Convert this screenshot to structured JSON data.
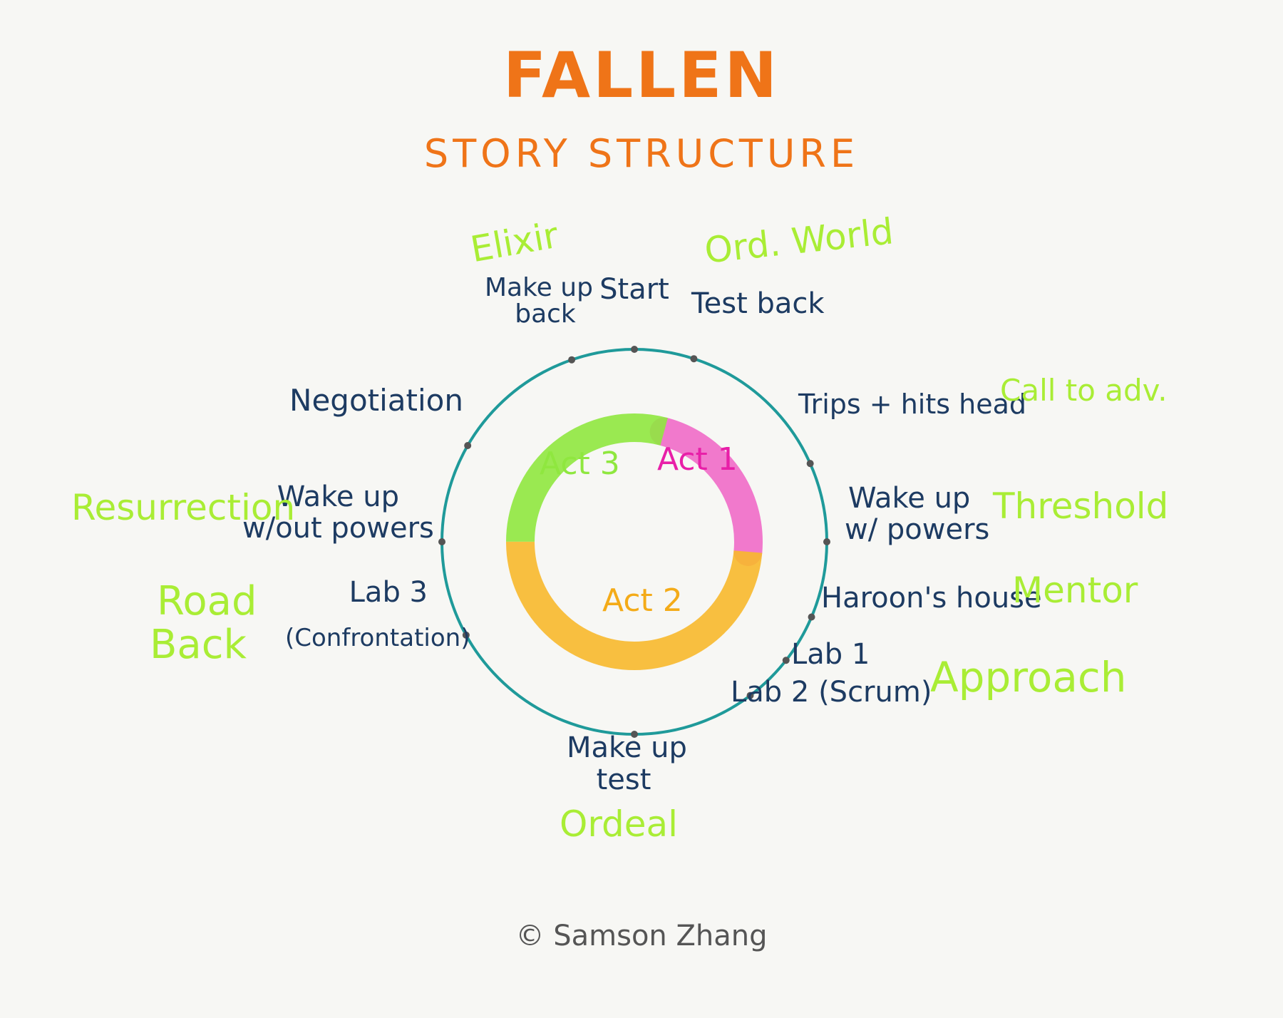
{
  "title": "FALLEN",
  "subtitle": "STORY STRUCTURE",
  "credit": "© Samson Zhang",
  "colors": {
    "title": "#ef7418",
    "event_text": "#1d3b62",
    "stage_text": "#a9ed35",
    "ring": "#1f9a9a",
    "act1": "#f06ac8",
    "act2": "#f7b82c",
    "act3": "#8fe73f",
    "dot": "#555555"
  },
  "acts": {
    "act1": "Act 1",
    "act2": "Act 2",
    "act3": "Act 3"
  },
  "events": {
    "start": "Start",
    "test_back": "Test back",
    "trips": "Trips + hits head",
    "wake_powers_1": "Wake up",
    "wake_powers_2": "w/ powers",
    "haroon": "Haroon's house",
    "lab1": "Lab 1",
    "lab2": "Lab 2 (Scrum)",
    "makeup_test_1": "Make up",
    "makeup_test_2": "test",
    "lab3_1": "Lab 3",
    "lab3_2": "(Confrontation)",
    "wake_nopowers_1": "Wake up",
    "wake_nopowers_2": "w/out powers",
    "negotiation": "Negotiation",
    "makeup_back_1": "Make up",
    "makeup_back_2": "back"
  },
  "stages": {
    "elixir": "Elixir",
    "ord_world": "Ord. World",
    "call": "Call to adv.",
    "threshold": "Threshold",
    "mentor": "Mentor",
    "approach": "Approach",
    "ordeal": "Ordeal",
    "road_1": "Road",
    "road_2": "Back",
    "resurrection": "Resurrection"
  }
}
